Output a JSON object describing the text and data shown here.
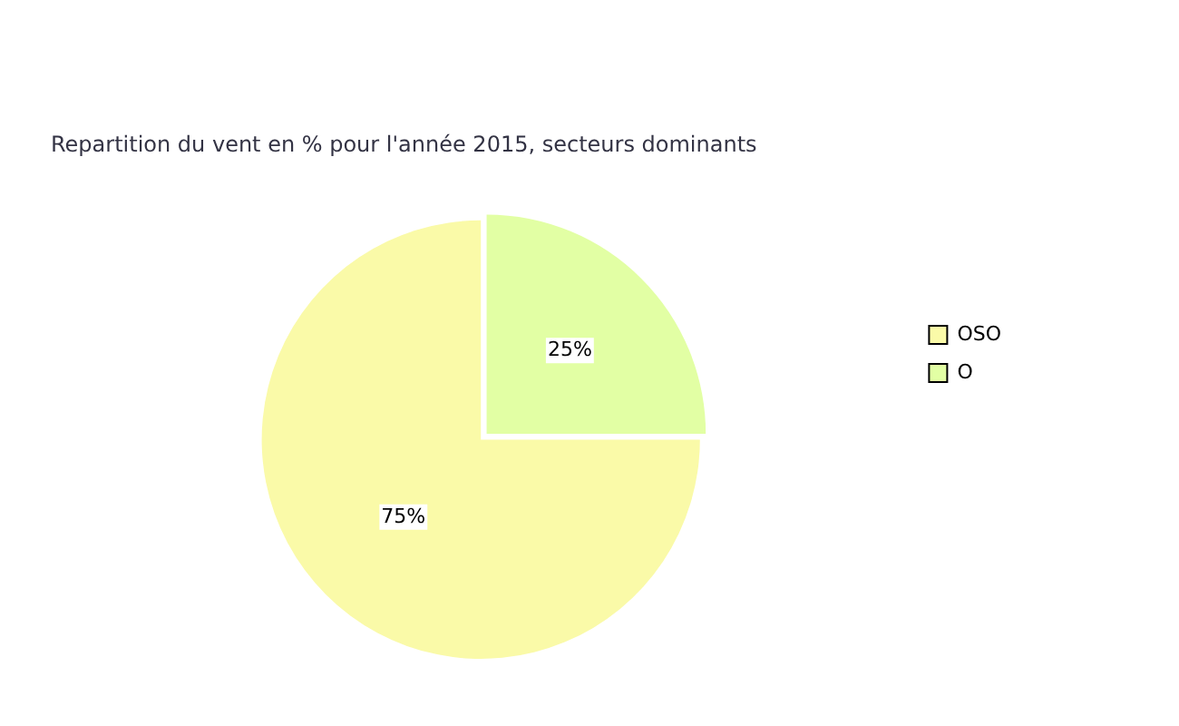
{
  "chart_data": {
    "type": "pie",
    "title": "Repartition du vent en % pour l'année 2015, secteurs dominants",
    "categories": [
      "OSO",
      "O"
    ],
    "values": [
      75,
      25
    ],
    "colors": [
      "#fafaa8",
      "#e2ffa4"
    ],
    "value_labels": [
      "75%",
      "25%"
    ],
    "legend": "right"
  }
}
